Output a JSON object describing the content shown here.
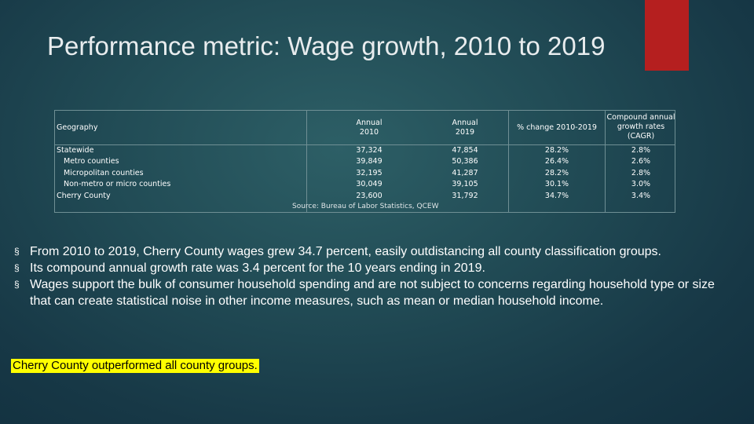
{
  "slide": {
    "title": "Performance metric: Wage growth, 2010 to 2019",
    "accent_color": "#b51f1f"
  },
  "table": {
    "headers": {
      "geography": "Geography",
      "annual_2010": "Annual 2010",
      "annual_2019": "Annual 2019",
      "pct_change": "% change 2010-2019",
      "cagr": "Compound annual growth rates (CAGR)"
    },
    "rows": [
      {
        "geography": "Statewide",
        "annual_2010": "37,324",
        "annual_2019": "47,854",
        "pct_change": "28.2%",
        "cagr": "2.8%"
      },
      {
        "geography": "Metro counties",
        "annual_2010": "39,849",
        "annual_2019": "50,386",
        "pct_change": "26.4%",
        "cagr": "2.6%"
      },
      {
        "geography": "Micropolitan counties",
        "annual_2010": "32,195",
        "annual_2019": "41,287",
        "pct_change": "28.2%",
        "cagr": "2.8%"
      },
      {
        "geography": "Non-metro or micro counties",
        "annual_2010": "30,049",
        "annual_2019": "39,105",
        "pct_change": "30.1%",
        "cagr": "3.0%"
      },
      {
        "geography": "Cherry County",
        "annual_2010": "23,600",
        "annual_2019": "31,792",
        "pct_change": "34.7%",
        "cagr": "3.4%"
      }
    ],
    "source": "Source: Bureau of Labor Statistics, QCEW"
  },
  "bullets": [
    "From 2010 to 2019, Cherry County wages grew 34.7 percent, easily outdistancing all county classification groups.",
    "Its compound annual growth rate was 3.4 percent for the 10 years ending in 2019.",
    "Wages support the bulk of consumer household spending and are not subject to concerns regarding household type or size that can create statistical noise in other income measures, such as mean or median household income."
  ],
  "bullet_marker": "§",
  "highlight": {
    "text": "Cherry County outperformed all county groups.",
    "color": "#ffff00"
  }
}
